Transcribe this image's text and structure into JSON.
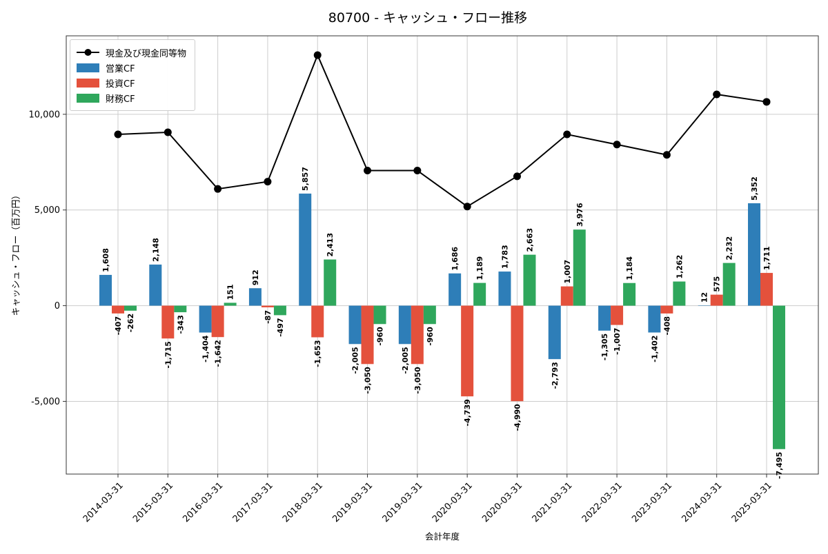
{
  "title": "80700 - キャッシュ・フロー推移",
  "legend": {
    "items": [
      {
        "label": "現金及び現金同等物",
        "marker": "line",
        "color": "#000000"
      },
      {
        "label": "営業CF",
        "marker": "swatch",
        "color": "#2e7eb8"
      },
      {
        "label": "投資CF",
        "marker": "swatch",
        "color": "#e4513c"
      },
      {
        "label": "財務CF",
        "marker": "swatch",
        "color": "#2fa75c"
      }
    ]
  },
  "chart_data": {
    "type": "bar",
    "title": "80700 - キャッシュ・フロー推移",
    "xlabel": "会計年度",
    "ylabel": "キャッシュ・フロー（百万円）",
    "categories": [
      "2014-03-31",
      "2015-03-31",
      "2016-03-31",
      "2017-03-31",
      "2018-03-31",
      "2019-03-31",
      "2019-03-31",
      "2020-03-31",
      "2020-03-31",
      "2021-03-31",
      "2022-03-31",
      "2023-03-31",
      "2024-03-31",
      "2025-03-31"
    ],
    "series": [
      {
        "name": "営業CF",
        "type": "bar",
        "color": "#2e7eb8",
        "values": [
          1608,
          2148,
          -1404,
          912,
          5857,
          -2005,
          -2005,
          1686,
          1783,
          -2793,
          -1305,
          -1402,
          12,
          5352
        ]
      },
      {
        "name": "投資CF",
        "type": "bar",
        "color": "#e4513c",
        "values": [
          -407,
          -1715,
          -1642,
          -87,
          -1653,
          -3050,
          -3050,
          -4739,
          -4990,
          1007,
          -1007,
          -408,
          575,
          1711
        ]
      },
      {
        "name": "財務CF",
        "type": "bar",
        "color": "#2fa75c",
        "values": [
          -262,
          -343,
          151,
          -497,
          2413,
          -960,
          -960,
          1189,
          2663,
          3976,
          1184,
          1262,
          2232,
          -7495
        ]
      },
      {
        "name": "現金及び現金同等物",
        "type": "line",
        "color": "#000000",
        "values": [
          8950,
          9060,
          6100,
          6480,
          13090,
          7060,
          7060,
          5180,
          6760,
          8950,
          8420,
          7880,
          11040,
          10650
        ]
      }
    ],
    "ylim": [
      -8800,
      14100
    ],
    "yticks": [
      -5000,
      0,
      5000,
      10000
    ],
    "grid": true,
    "legend_position": "upper-left",
    "bar_label_rotation": 90,
    "xtick_rotation": 45
  }
}
